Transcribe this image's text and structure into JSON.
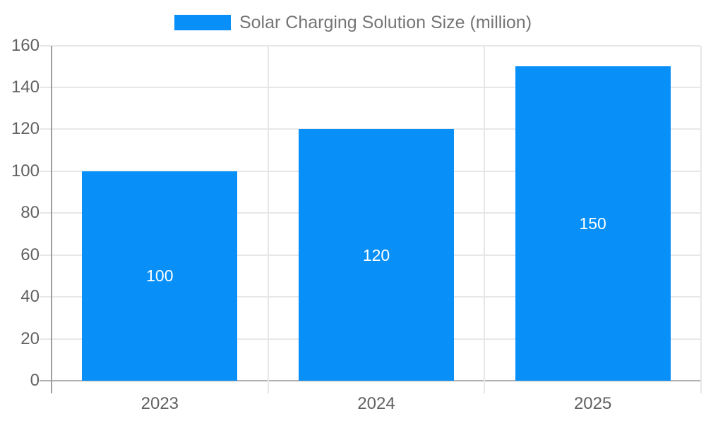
{
  "chart_data": {
    "type": "bar",
    "title": "Solar Charging Solution Size (million)",
    "legend": {
      "position": "top-center",
      "entries": [
        {
          "label": "Solar Charging Solution Size (million)",
          "swatch_color": "#0890f8"
        }
      ]
    },
    "categories": [
      "2023",
      "2024",
      "2025"
    ],
    "series": [
      {
        "name": "Solar Charging Solution Size (million)",
        "values": [
          100,
          120,
          150
        ]
      }
    ],
    "data_labels": [
      "100",
      "120",
      "150"
    ],
    "xlabel": "",
    "ylabel": "",
    "ylim": [
      0,
      160
    ],
    "yticks": [
      0,
      20,
      40,
      60,
      80,
      100,
      120,
      140,
      160
    ],
    "grid": "on",
    "colors": {
      "bar": "#0890f8",
      "data_label_text": "#ffffff",
      "gridline": "#e7e7e7",
      "axis_line": "#9e9e9e",
      "zero_line": "#b0b0b0",
      "tick_label_text": "#616161",
      "legend_text": "#757575",
      "background": "#ffffff"
    }
  }
}
